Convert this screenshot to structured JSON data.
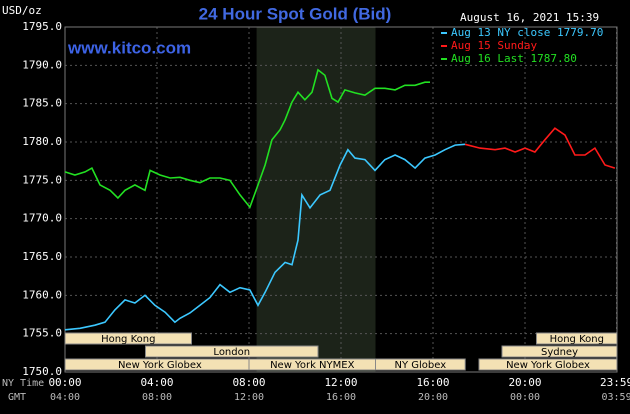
{
  "chart_data": {
    "type": "line",
    "title": "24 Hour Spot Gold (Bid)",
    "unit_label": "USD/oz",
    "timestamp": "August 16, 2021 15:39",
    "watermark": "www.kitco.com",
    "x_axis_label": "NY Time",
    "x2_axis_label": "GMT",
    "xlim": [
      0,
      24
    ],
    "ylim": [
      1750,
      1795
    ],
    "grid": true,
    "yticks": [
      {
        "value": 1750,
        "label": "1750.0"
      },
      {
        "value": 1755,
        "label": "1755.0"
      },
      {
        "value": 1760,
        "label": "1760.0"
      },
      {
        "value": 1765,
        "label": "1765.0"
      },
      {
        "value": 1770,
        "label": "1770.0"
      },
      {
        "value": 1775,
        "label": "1775.0"
      },
      {
        "value": 1780,
        "label": "1780.0"
      },
      {
        "value": 1785,
        "label": "1785.0"
      },
      {
        "value": 1790,
        "label": "1790.0"
      },
      {
        "value": 1795,
        "label": "1795.0"
      }
    ],
    "xticks": [
      {
        "value": 0,
        "label": "00:00"
      },
      {
        "value": 4,
        "label": "04:00"
      },
      {
        "value": 8,
        "label": "08:00"
      },
      {
        "value": 12,
        "label": "12:00"
      },
      {
        "value": 16,
        "label": "16:00"
      },
      {
        "value": 20,
        "label": "20:00"
      },
      {
        "value": 23.98,
        "label": "23:59"
      }
    ],
    "x2ticks": [
      {
        "value": 0,
        "label": "04:00"
      },
      {
        "value": 4,
        "label": "08:00"
      },
      {
        "value": 8,
        "label": "12:00"
      },
      {
        "value": 12,
        "label": "16:00"
      },
      {
        "value": 16,
        "label": "20:00"
      },
      {
        "value": 20,
        "label": "00:00"
      },
      {
        "value": 23.98,
        "label": "03:59"
      }
    ],
    "highlight": [
      8.33,
      13.5
    ],
    "sessions": [
      {
        "label": "Hong Kong",
        "start": 0,
        "end": 5.5,
        "row": 0
      },
      {
        "label": "Hong Kong",
        "start": 20.5,
        "end": 24,
        "row": 0
      },
      {
        "label": "London",
        "start": 3.5,
        "end": 11,
        "row": 1
      },
      {
        "label": "Sydney",
        "start": 19,
        "end": 24,
        "row": 1
      },
      {
        "label": "New York Globex",
        "start": 0,
        "end": 8.25,
        "row": 2
      },
      {
        "label": "New York NYMEX",
        "start": 8,
        "end": 13.5,
        "row": 2
      },
      {
        "label": "NY Globex",
        "start": 13.5,
        "end": 17.4,
        "row": 2
      },
      {
        "label": "New York Globex",
        "start": 18,
        "end": 24,
        "row": 2
      }
    ],
    "series": [
      {
        "name": "Aug 13 NY close 1779.70",
        "color": "#3cc8ff",
        "x": [
          0,
          0.65,
          1.3,
          1.74,
          2.17,
          2.61,
          3.04,
          3.48,
          3.91,
          4.35,
          4.78,
          5.0,
          5.43,
          5.87,
          6.3,
          6.74,
          7.17,
          7.61,
          8.04,
          8.39,
          8.7,
          9.13,
          9.57,
          9.87,
          10.13,
          10.3,
          10.65,
          11.09,
          11.52,
          11.96,
          12.3,
          12.61,
          13.04,
          13.48,
          13.91,
          14.35,
          14.78,
          15.22,
          15.65,
          16.09,
          16.52,
          16.96,
          17.39
        ],
        "values": [
          1755.5,
          1755.7,
          1756.1,
          1756.5,
          1758.1,
          1759.4,
          1759.0,
          1760.0,
          1758.7,
          1757.8,
          1756.5,
          1757.0,
          1757.7,
          1758.7,
          1759.7,
          1761.4,
          1760.4,
          1761.0,
          1760.7,
          1758.7,
          1760.4,
          1763.0,
          1764.3,
          1764.0,
          1767.2,
          1773.1,
          1771.4,
          1773.1,
          1773.7,
          1777.0,
          1779.0,
          1777.9,
          1777.7,
          1776.3,
          1777.7,
          1778.3,
          1777.7,
          1776.6,
          1777.9,
          1778.3,
          1779.0,
          1779.6,
          1779.7
        ]
      },
      {
        "name": "Aug 15 Sunday",
        "color": "#ff1a1a",
        "x": [
          17.39,
          18.04,
          18.7,
          19.13,
          19.57,
          20.0,
          20.43,
          20.87,
          21.3,
          21.74,
          22.17,
          22.61,
          23.04,
          23.48,
          23.91
        ],
        "values": [
          1779.7,
          1779.2,
          1779.0,
          1779.2,
          1778.7,
          1779.2,
          1778.7,
          1780.3,
          1781.8,
          1780.9,
          1778.3,
          1778.3,
          1779.2,
          1777.0,
          1776.6
        ]
      },
      {
        "name": "Aug 16 Last 1787.80",
        "color": "#22e022",
        "x": [
          0,
          0.43,
          0.87,
          1.17,
          1.52,
          1.96,
          2.3,
          2.61,
          3.04,
          3.48,
          3.7,
          4.13,
          4.57,
          5.0,
          5.43,
          5.87,
          6.3,
          6.74,
          7.17,
          7.61,
          8.04,
          8.39,
          8.7,
          9.0,
          9.35,
          9.57,
          9.87,
          10.13,
          10.43,
          10.74,
          11.0,
          11.3,
          11.61,
          11.87,
          12.17,
          12.61,
          13.04,
          13.48,
          13.91,
          14.35,
          14.78,
          15.22,
          15.65,
          15.87
        ],
        "values": [
          1776.1,
          1775.7,
          1776.1,
          1776.6,
          1774.4,
          1773.7,
          1772.7,
          1773.7,
          1774.4,
          1773.7,
          1776.3,
          1775.7,
          1775.3,
          1775.4,
          1775.0,
          1774.7,
          1775.3,
          1775.3,
          1775.0,
          1773.1,
          1771.5,
          1774.4,
          1777.0,
          1780.3,
          1781.6,
          1782.9,
          1785.2,
          1786.5,
          1785.5,
          1786.5,
          1789.4,
          1788.7,
          1785.7,
          1785.2,
          1786.8,
          1786.4,
          1786.1,
          1787.0,
          1787.0,
          1786.8,
          1787.4,
          1787.4,
          1787.8,
          1787.8
        ]
      }
    ]
  }
}
